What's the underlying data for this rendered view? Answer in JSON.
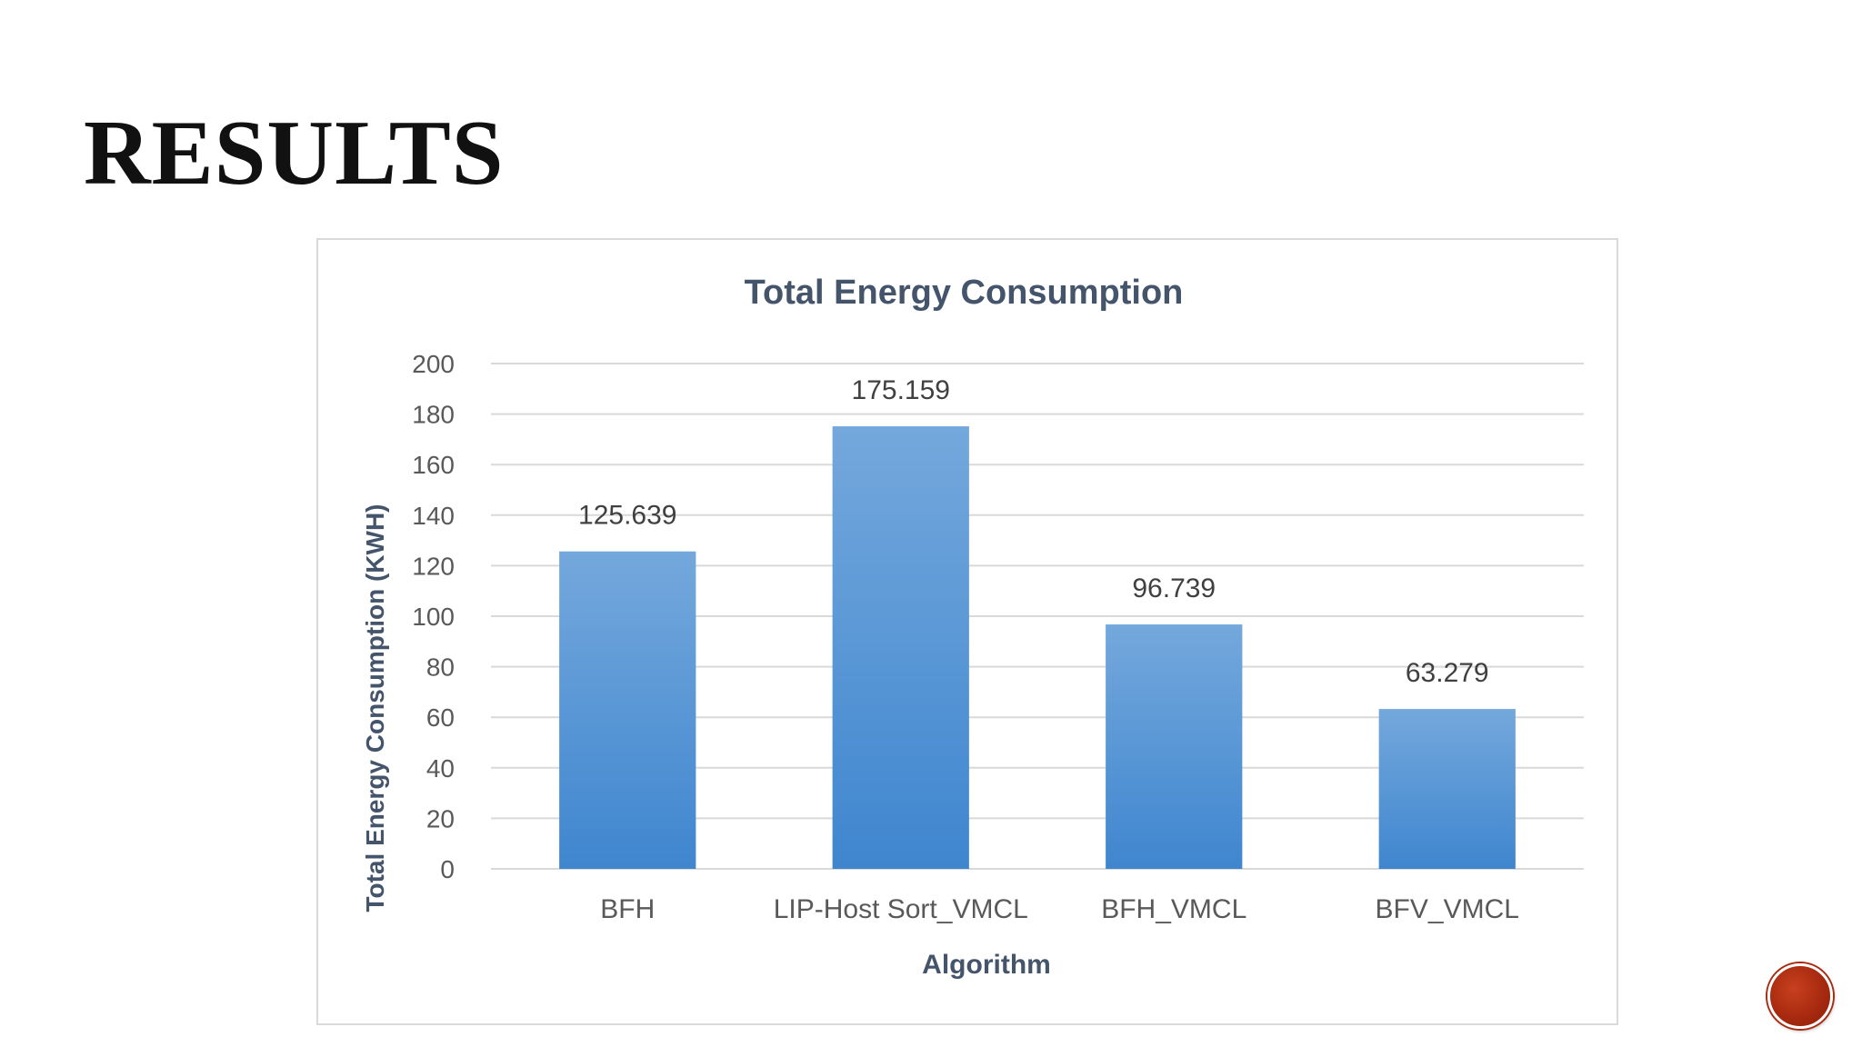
{
  "slide": {
    "title": "RESULTS"
  },
  "colors": {
    "bar_top": "#74a8dc",
    "bar_bottom": "#3f86cf",
    "nav_button": "#a82a10"
  },
  "chart_data": {
    "type": "bar",
    "title": "Total Energy Consumption",
    "xlabel": "Algorithm",
    "ylabel": "Total Energy Consumption (KWH)",
    "categories": [
      "BFH",
      "LIP-Host Sort_VMCL",
      "BFH_VMCL",
      "BFV_VMCL"
    ],
    "values": [
      125.639,
      175.159,
      96.739,
      63.279
    ],
    "data_labels": [
      "125.639",
      "175.159",
      "96.739",
      "63.279"
    ],
    "ylim": [
      0,
      200
    ],
    "yticks": [
      0,
      20,
      40,
      60,
      80,
      100,
      120,
      140,
      160,
      180,
      200
    ],
    "grid": true,
    "legend": "none"
  }
}
